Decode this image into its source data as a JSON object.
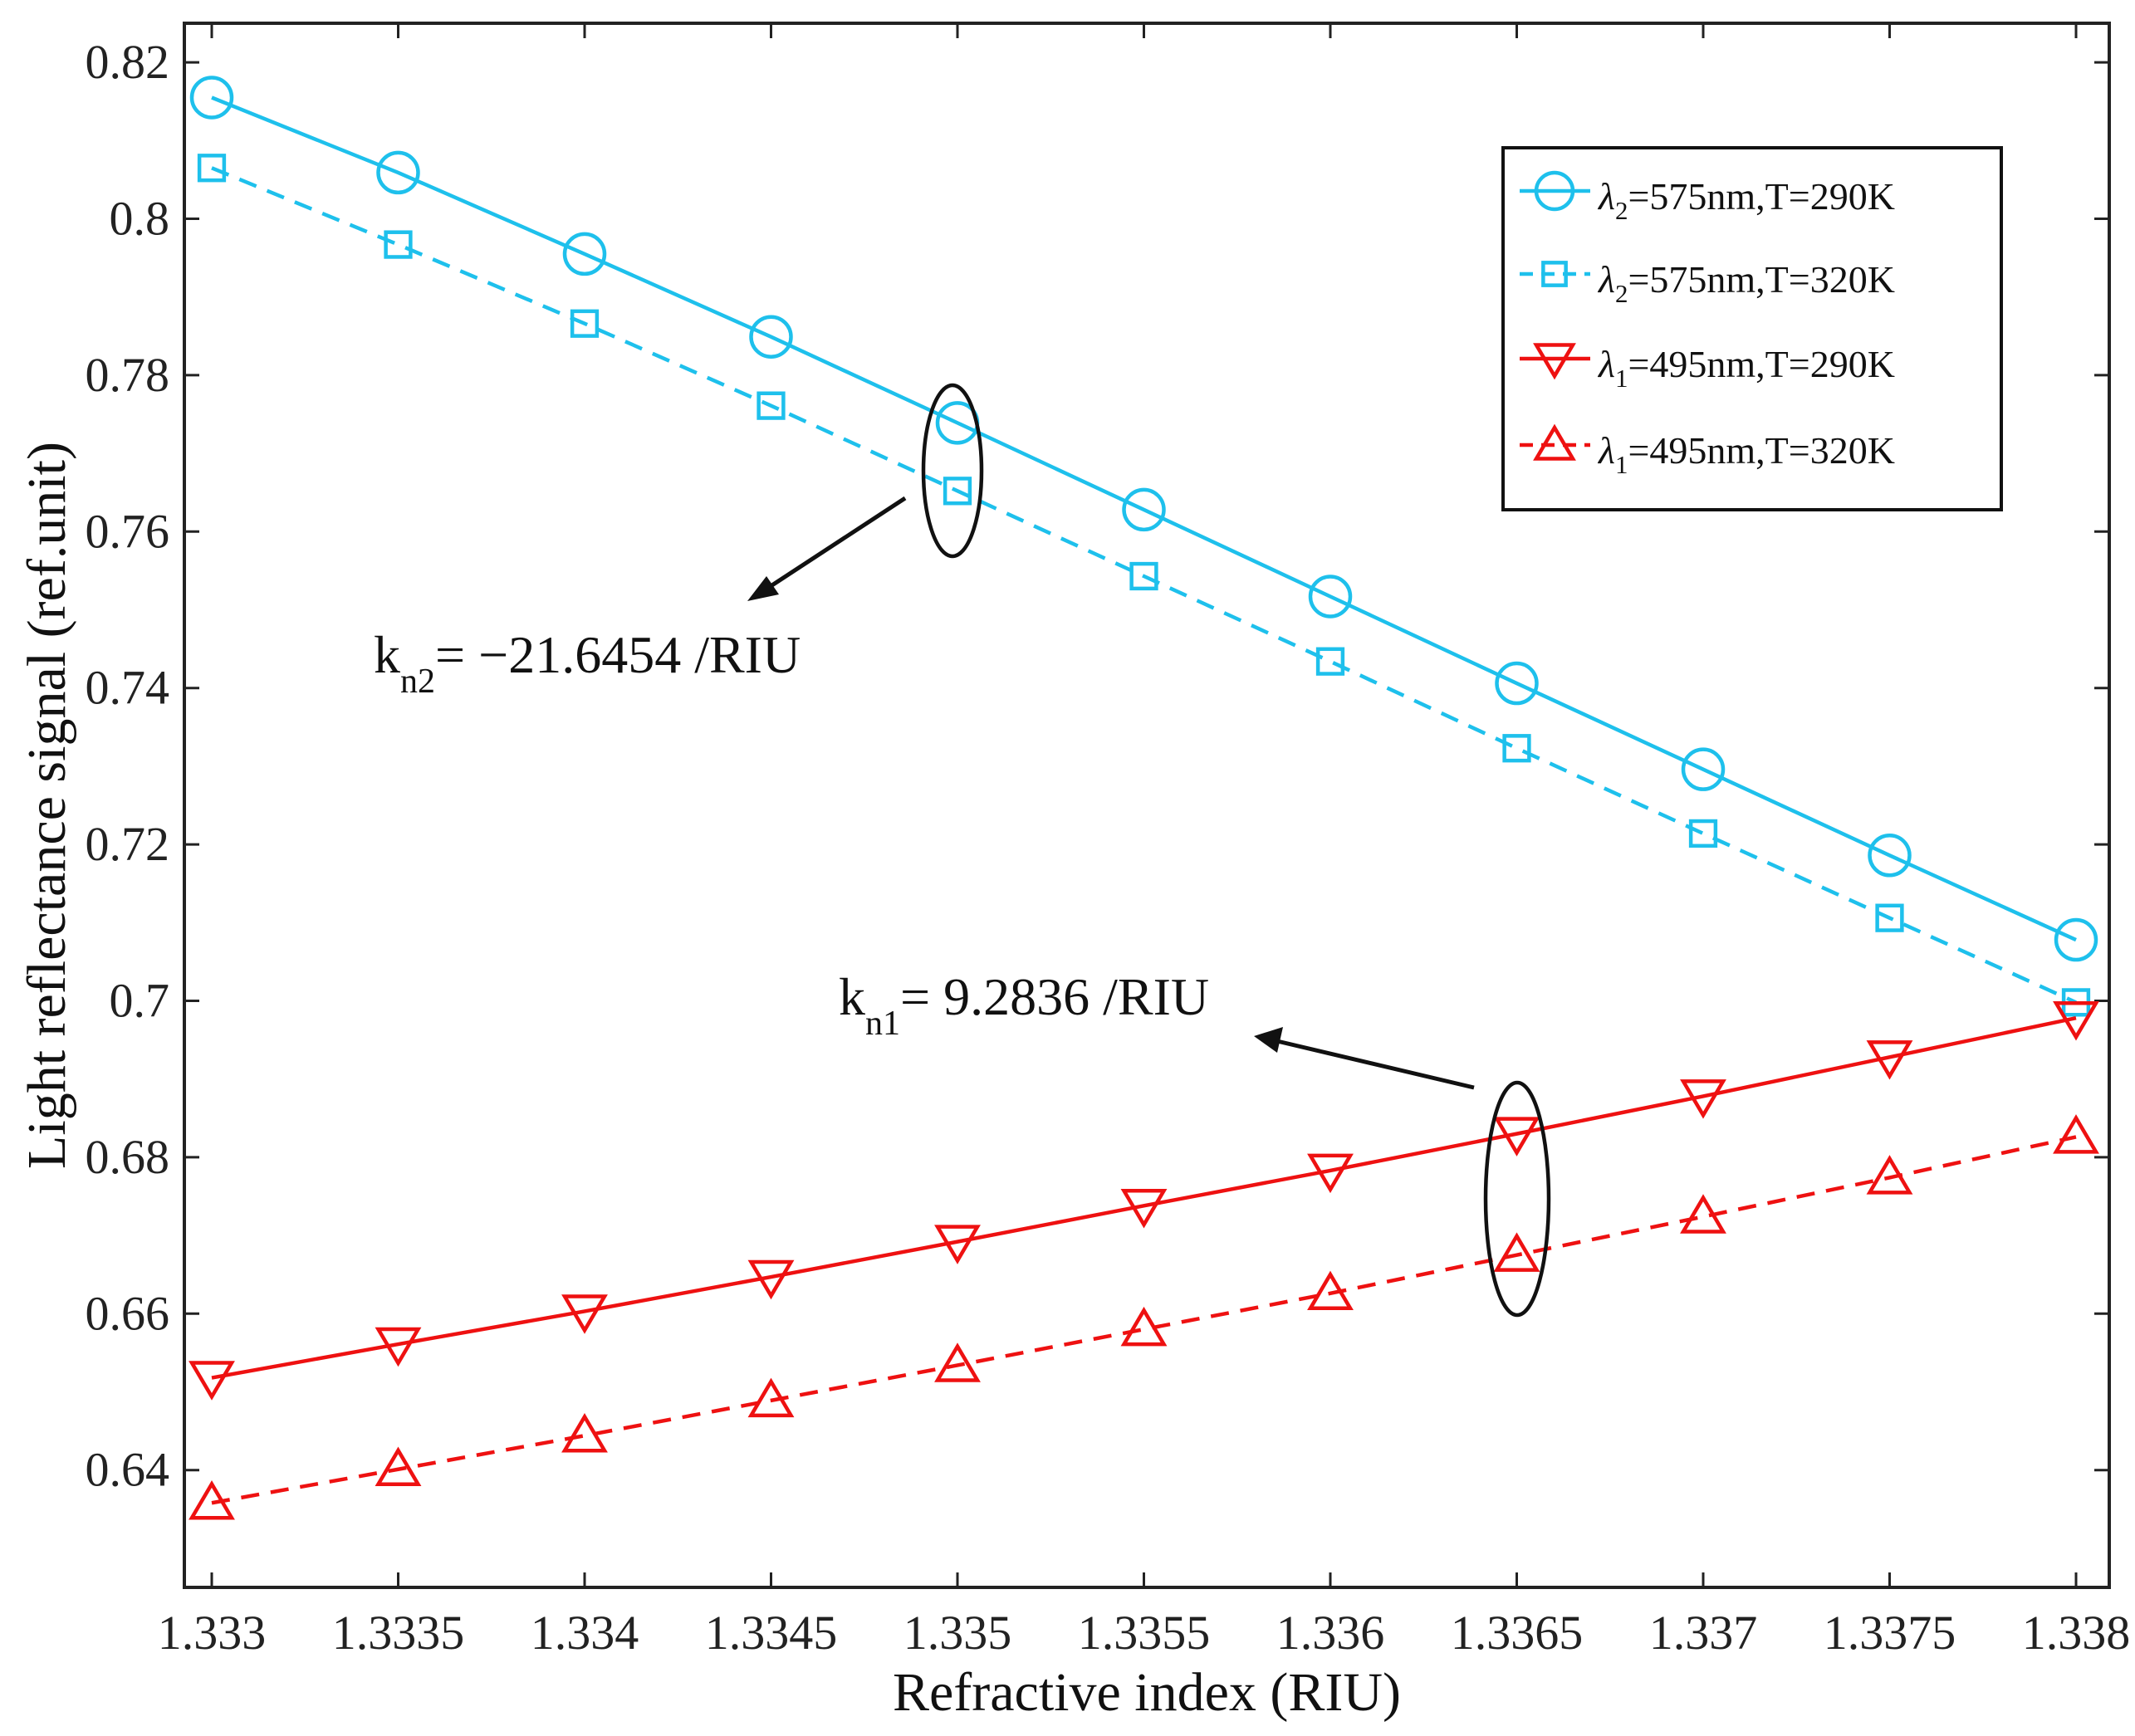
{
  "chart_data": {
    "type": "line",
    "xlabel": "Refractive index (RIU)",
    "ylabel": "Light reflectance signal (ref.unit)",
    "xlim": [
      1.333,
      1.338
    ],
    "ylim": [
      0.625,
      0.825
    ],
    "xticks": [
      "1.333",
      "1.3335",
      "1.334",
      "1.3345",
      "1.335",
      "1.3355",
      "1.336",
      "1.3365",
      "1.337",
      "1.3375",
      "1.338"
    ],
    "yticks": [
      "0.64",
      "0.66",
      "0.68",
      "0.7",
      "0.72",
      "0.74",
      "0.76",
      "0.78",
      "0.8",
      "0.82"
    ],
    "x": [
      1.333,
      1.3335,
      1.334,
      1.3345,
      1.335,
      1.3355,
      1.336,
      1.3365,
      1.337,
      1.3375,
      1.338
    ],
    "series": [
      {
        "name": "λ2=575nm,T=290K",
        "symbol": "λ",
        "subscript": "2",
        "text": "=575nm,T=290K",
        "color": "#1EC0EC",
        "dash": "solid",
        "marker": "circle",
        "values": [
          0.8155,
          0.8059,
          0.7955,
          0.7849,
          0.7739,
          0.7628,
          0.7517,
          0.7406,
          0.7296,
          0.7186,
          0.7078
        ]
      },
      {
        "name": "λ2=575nm,T=320K",
        "symbol": "λ",
        "subscript": "2",
        "text": "=575nm,T=320K",
        "color": "#1EC0EC",
        "dash": "dashed",
        "marker": "square",
        "values": [
          0.8065,
          0.7967,
          0.7866,
          0.7761,
          0.7652,
          0.7543,
          0.7434,
          0.7323,
          0.7214,
          0.7106,
          0.6998
        ]
      },
      {
        "name": "λ1=495nm,T=290K",
        "symbol": "λ",
        "subscript": "1",
        "text": "=495nm,T=290K",
        "color": "#EE1111",
        "dash": "solid",
        "marker": "triangle-down",
        "values": [
          0.6518,
          0.6561,
          0.6603,
          0.6647,
          0.6692,
          0.6738,
          0.6783,
          0.683,
          0.6878,
          0.6928,
          0.6978
        ]
      },
      {
        "name": "λ1=495nm,T=320K",
        "symbol": "λ",
        "subscript": "1",
        "text": "=495nm,T=320K",
        "color": "#EE1111",
        "dash": "dashed",
        "marker": "triangle-up",
        "values": [
          0.6358,
          0.6401,
          0.6444,
          0.6489,
          0.6534,
          0.658,
          0.6626,
          0.6675,
          0.6724,
          0.6774,
          0.6826
        ]
      }
    ],
    "legend_position": "top-right",
    "annotations": [
      {
        "main": "k",
        "sub": "n2",
        "text": "= −21.6454 /RIU"
      },
      {
        "main": "k",
        "sub": "n1",
        "text": "= 9.2836 /RIU"
      }
    ]
  }
}
